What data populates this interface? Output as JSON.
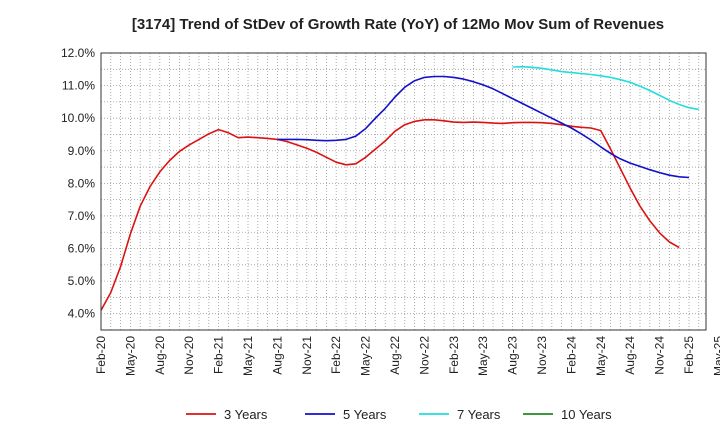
{
  "chart_data": {
    "type": "line",
    "title": "[3174]  Trend of StDev of Growth Rate (YoY) of 12Mo Mov Sum of Revenues",
    "xlabel": "",
    "ylabel": "",
    "ylim": [
      3.5,
      12.0
    ],
    "y_ticks": [
      4.0,
      5.0,
      6.0,
      7.0,
      8.0,
      9.0,
      10.0,
      11.0,
      12.0
    ],
    "y_tick_labels": [
      "4.0%",
      "5.0%",
      "6.0%",
      "7.0%",
      "8.0%",
      "9.0%",
      "10.0%",
      "11.0%",
      "12.0%"
    ],
    "x_ticks": [
      "Feb-20",
      "May-20",
      "Aug-20",
      "Nov-20",
      "Feb-21",
      "May-21",
      "Aug-21",
      "Nov-21",
      "Feb-22",
      "May-22",
      "Aug-22",
      "Nov-22",
      "Feb-23",
      "May-23",
      "Aug-23",
      "Nov-23",
      "Feb-24",
      "May-24",
      "Aug-24",
      "Nov-24",
      "Feb-25",
      "May-25"
    ],
    "grid": true,
    "legend_position": "bottom",
    "series": [
      {
        "name": "3 Years",
        "color": "#dd1111",
        "start_month": 0,
        "values": [
          4.1,
          4.65,
          5.45,
          6.45,
          7.3,
          7.9,
          8.35,
          8.7,
          8.98,
          9.18,
          9.35,
          9.52,
          9.65,
          9.55,
          9.4,
          9.42,
          9.4,
          9.38,
          9.35,
          9.28,
          9.18,
          9.08,
          8.95,
          8.8,
          8.65,
          8.57,
          8.6,
          8.8,
          9.05,
          9.3,
          9.6,
          9.8,
          9.9,
          9.95,
          9.95,
          9.92,
          9.88,
          9.87,
          9.88,
          9.87,
          9.85,
          9.84,
          9.86,
          9.87,
          9.87,
          9.86,
          9.84,
          9.8,
          9.75,
          9.72,
          9.7,
          9.62,
          9.05,
          8.45,
          7.85,
          7.3,
          6.85,
          6.48,
          6.2,
          6.03
        ]
      },
      {
        "name": "5 Years",
        "color": "#1111cc",
        "start_month": 18,
        "values": [
          9.35,
          9.35,
          9.35,
          9.34,
          9.32,
          9.31,
          9.32,
          9.35,
          9.45,
          9.68,
          10.0,
          10.3,
          10.65,
          10.95,
          11.15,
          11.25,
          11.28,
          11.28,
          11.25,
          11.2,
          11.12,
          11.02,
          10.9,
          10.75,
          10.6,
          10.45,
          10.3,
          10.15,
          10.0,
          9.85,
          9.7,
          9.52,
          9.33,
          9.12,
          8.92,
          8.75,
          8.62,
          8.52,
          8.42,
          8.33,
          8.25,
          8.2,
          8.18
        ]
      },
      {
        "name": "7 Years",
        "color": "#22dddd",
        "start_month": 42,
        "values": [
          11.57,
          11.58,
          11.56,
          11.53,
          11.48,
          11.43,
          11.4,
          11.37,
          11.34,
          11.3,
          11.25,
          11.18,
          11.1,
          10.98,
          10.85,
          10.7,
          10.55,
          10.42,
          10.32,
          10.27
        ]
      },
      {
        "name": "10 Years",
        "color": "#228822",
        "start_month": 0,
        "values": []
      }
    ]
  }
}
